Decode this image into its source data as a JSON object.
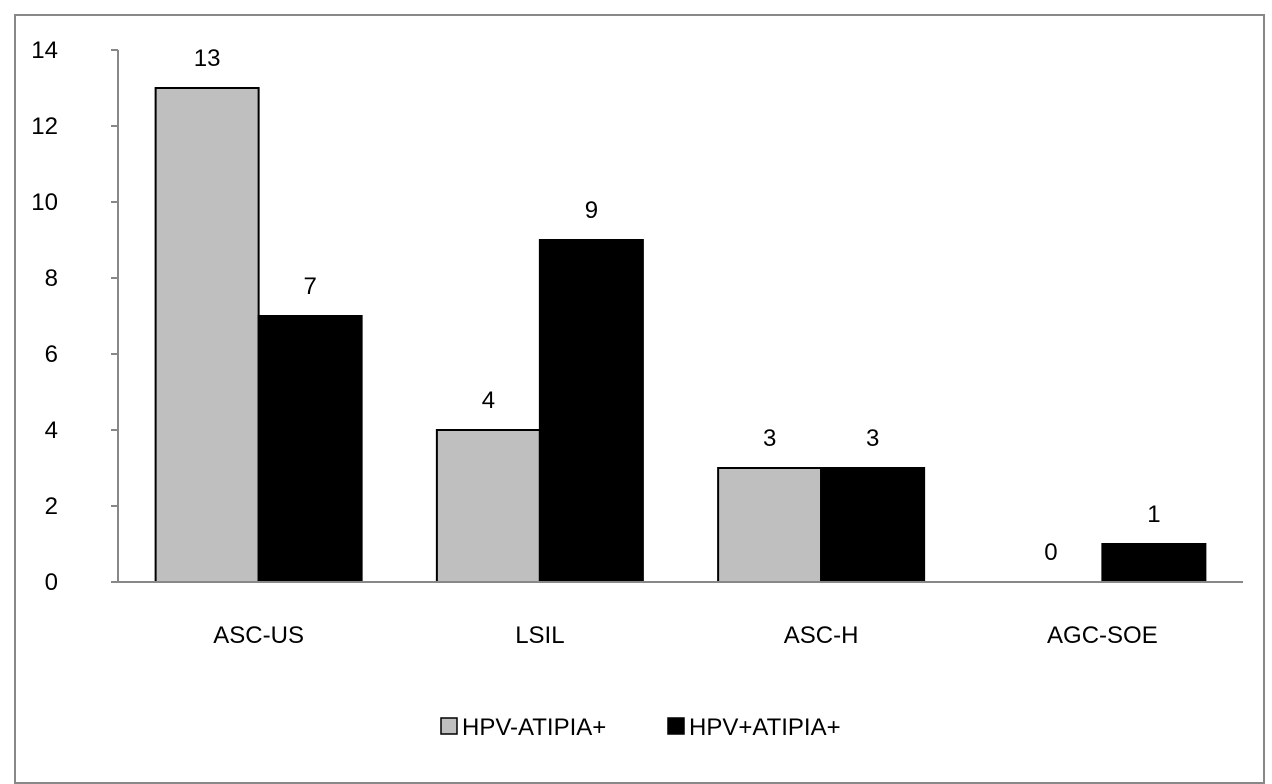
{
  "chart_data": {
    "type": "bar",
    "title": "",
    "xlabel": "",
    "ylabel": "",
    "categories": [
      "ASC-US",
      "LSIL",
      "ASC-H",
      "AGC-SOE"
    ],
    "series": [
      {
        "name": "HPV-ATIPIA+",
        "values": [
          13,
          4,
          3,
          0
        ],
        "color": "#bfbfbf"
      },
      {
        "name": "HPV+ATIPIA+",
        "values": [
          7,
          9,
          3,
          1
        ],
        "color": "#000000"
      }
    ],
    "ylim": [
      0,
      14
    ],
    "yticks": [
      "0",
      "2",
      "4",
      "6",
      "8",
      "10",
      "12",
      "14"
    ],
    "grid": false,
    "legend_position": "bottom"
  }
}
